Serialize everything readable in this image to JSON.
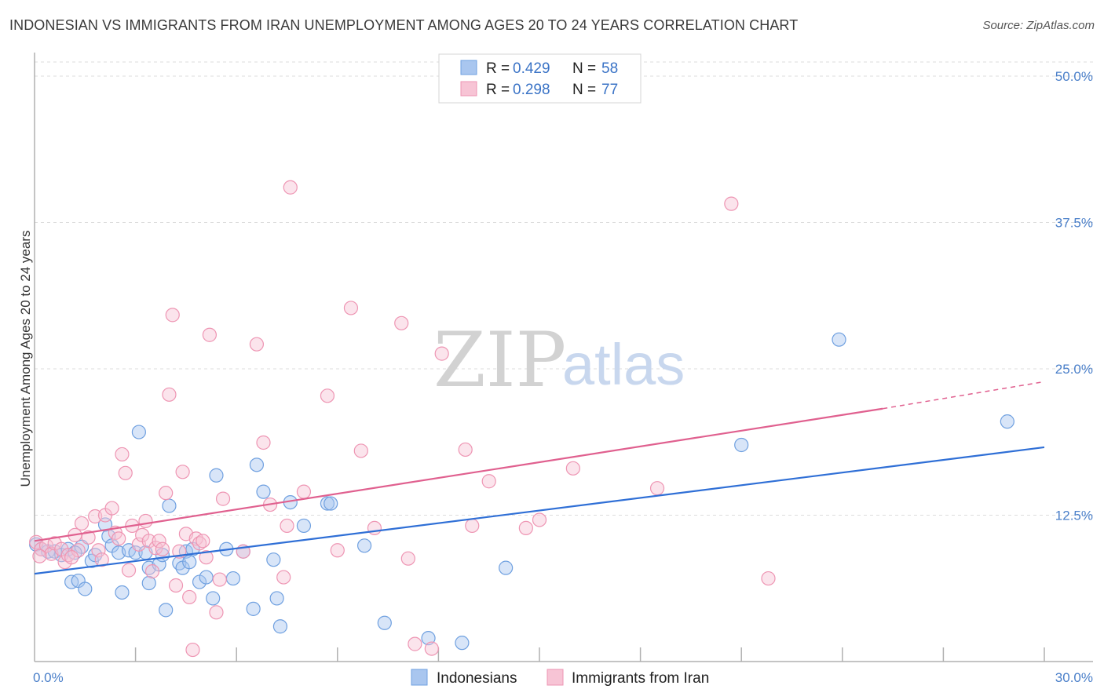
{
  "title": "INDONESIAN VS IMMIGRANTS FROM IRAN UNEMPLOYMENT AMONG AGES 20 TO 24 YEARS CORRELATION CHART",
  "source": "Source: ZipAtlas.com",
  "watermark": {
    "zip": "ZIP",
    "atlas": "atlas"
  },
  "legend": {
    "r_label": "R =",
    "n_label": "N =",
    "rows": [
      {
        "r": "0.429",
        "n": "58"
      },
      {
        "r": "0.298",
        "n": "77"
      }
    ]
  },
  "chart_data": {
    "type": "scatter",
    "title": "INDONESIAN VS IMMIGRANTS FROM IRAN UNEMPLOYMENT AMONG AGES 20 TO 24 YEARS CORRELATION CHART",
    "xlabel": "",
    "ylabel": "Unemployment Among Ages 20 to 24 years",
    "xlim": [
      0,
      30
    ],
    "ylim": [
      0,
      50
    ],
    "x_tick_labels": [
      {
        "value": 0,
        "label": "0.0%"
      },
      {
        "value": 30,
        "label": "30.0%"
      }
    ],
    "y_tick_labels": [
      {
        "value": 12.5,
        "label": "12.5%"
      },
      {
        "value": 25,
        "label": "25.0%"
      },
      {
        "value": 37.5,
        "label": "37.5%"
      },
      {
        "value": 50,
        "label": "50.0%"
      }
    ],
    "series": [
      {
        "name": "Indonesians",
        "color": "#6fa0e0",
        "fill": "#a9c6ef",
        "line_color": "#2f6fd6",
        "trend": {
          "x0": 0,
          "y0": 7.5,
          "x1": 30,
          "y1": 18.3
        },
        "points": [
          [
            0.05,
            10.0
          ],
          [
            0.2,
            9.6
          ],
          [
            0.4,
            9.4
          ],
          [
            0.6,
            9.4
          ],
          [
            0.8,
            9.1
          ],
          [
            1.0,
            9.6
          ],
          [
            1.1,
            6.8
          ],
          [
            1.3,
            6.9
          ],
          [
            1.4,
            9.8
          ],
          [
            1.5,
            6.2
          ],
          [
            1.7,
            8.6
          ],
          [
            1.8,
            9.1
          ],
          [
            2.1,
            11.7
          ],
          [
            2.2,
            10.7
          ],
          [
            2.3,
            9.9
          ],
          [
            2.5,
            9.3
          ],
          [
            2.6,
            5.9
          ],
          [
            2.8,
            9.5
          ],
          [
            3.0,
            9.3
          ],
          [
            3.1,
            19.6
          ],
          [
            3.3,
            9.3
          ],
          [
            3.4,
            8.0
          ],
          [
            3.4,
            6.7
          ],
          [
            3.7,
            8.3
          ],
          [
            3.8,
            9.1
          ],
          [
            3.9,
            4.4
          ],
          [
            4.0,
            13.3
          ],
          [
            4.3,
            8.4
          ],
          [
            4.4,
            8.0
          ],
          [
            4.5,
            9.4
          ],
          [
            4.6,
            8.5
          ],
          [
            4.7,
            9.6
          ],
          [
            4.9,
            6.8
          ],
          [
            5.1,
            7.2
          ],
          [
            5.3,
            5.4
          ],
          [
            5.4,
            15.9
          ],
          [
            5.7,
            9.6
          ],
          [
            5.9,
            7.1
          ],
          [
            6.2,
            9.4
          ],
          [
            6.5,
            4.5
          ],
          [
            6.6,
            16.8
          ],
          [
            6.8,
            14.5
          ],
          [
            7.1,
            8.7
          ],
          [
            7.2,
            5.4
          ],
          [
            7.3,
            3.0
          ],
          [
            7.6,
            13.6
          ],
          [
            8.0,
            11.6
          ],
          [
            8.7,
            13.5
          ],
          [
            8.8,
            13.5
          ],
          [
            9.8,
            9.9
          ],
          [
            10.4,
            3.3
          ],
          [
            11.7,
            2.0
          ],
          [
            12.7,
            1.6
          ],
          [
            14.0,
            8.0
          ],
          [
            21.0,
            18.5
          ],
          [
            23.9,
            27.5
          ],
          [
            28.9,
            20.5
          ],
          [
            1.2,
            9.3
          ]
        ]
      },
      {
        "name": "Immigrants from Iran",
        "color": "#ee95b3",
        "fill": "#f7c4d5",
        "line_color": "#e0608f",
        "trend": {
          "x0": 0,
          "y0": 10.3,
          "x1": 25.2,
          "y1": 21.6
        },
        "trend_dashed": {
          "x0": 25.2,
          "y0": 21.6,
          "x1": 30,
          "y1": 23.9
        },
        "points": [
          [
            0.05,
            10.2
          ],
          [
            0.2,
            9.6
          ],
          [
            0.35,
            9.9
          ],
          [
            0.5,
            9.2
          ],
          [
            0.6,
            10.1
          ],
          [
            0.8,
            9.6
          ],
          [
            0.9,
            8.5
          ],
          [
            1.0,
            9.1
          ],
          [
            1.2,
            10.8
          ],
          [
            1.3,
            9.5
          ],
          [
            1.4,
            11.8
          ],
          [
            1.6,
            10.6
          ],
          [
            1.8,
            12.4
          ],
          [
            1.9,
            9.5
          ],
          [
            2.0,
            8.7
          ],
          [
            2.1,
            12.5
          ],
          [
            2.3,
            13.1
          ],
          [
            2.4,
            11.0
          ],
          [
            2.6,
            17.7
          ],
          [
            2.7,
            16.1
          ],
          [
            2.8,
            7.8
          ],
          [
            2.9,
            11.6
          ],
          [
            3.1,
            10.0
          ],
          [
            3.2,
            10.8
          ],
          [
            3.3,
            12.0
          ],
          [
            3.4,
            10.3
          ],
          [
            3.5,
            7.7
          ],
          [
            3.6,
            9.7
          ],
          [
            3.7,
            10.3
          ],
          [
            3.8,
            9.6
          ],
          [
            3.9,
            14.4
          ],
          [
            4.0,
            22.8
          ],
          [
            4.1,
            29.6
          ],
          [
            4.2,
            6.5
          ],
          [
            4.4,
            16.2
          ],
          [
            4.5,
            10.9
          ],
          [
            4.6,
            5.5
          ],
          [
            4.7,
            1.0
          ],
          [
            4.8,
            10.5
          ],
          [
            4.9,
            10.1
          ],
          [
            5.0,
            10.3
          ],
          [
            5.1,
            8.9
          ],
          [
            5.2,
            27.9
          ],
          [
            5.4,
            4.2
          ],
          [
            5.5,
            7.0
          ],
          [
            5.6,
            13.9
          ],
          [
            6.2,
            9.4
          ],
          [
            6.6,
            27.1
          ],
          [
            6.8,
            18.7
          ],
          [
            7.0,
            13.4
          ],
          [
            7.4,
            7.2
          ],
          [
            7.5,
            11.6
          ],
          [
            7.6,
            40.5
          ],
          [
            8.0,
            14.5
          ],
          [
            8.7,
            22.7
          ],
          [
            9.0,
            9.5
          ],
          [
            9.4,
            30.2
          ],
          [
            9.7,
            18.0
          ],
          [
            10.1,
            11.4
          ],
          [
            10.9,
            28.9
          ],
          [
            11.1,
            8.8
          ],
          [
            11.3,
            1.5
          ],
          [
            11.8,
            1.1
          ],
          [
            12.1,
            26.3
          ],
          [
            12.8,
            18.1
          ],
          [
            13.0,
            11.6
          ],
          [
            13.5,
            15.4
          ],
          [
            14.6,
            11.4
          ],
          [
            15.0,
            12.1
          ],
          [
            16.0,
            16.5
          ],
          [
            18.5,
            14.8
          ],
          [
            20.7,
            39.1
          ],
          [
            21.8,
            7.1
          ],
          [
            0.15,
            9.0
          ],
          [
            2.5,
            10.5
          ],
          [
            1.1,
            8.9
          ],
          [
            4.3,
            9.4
          ]
        ]
      }
    ]
  },
  "bottom_legend": [
    {
      "label": "Indonesians"
    },
    {
      "label": "Immigrants from Iran"
    }
  ]
}
